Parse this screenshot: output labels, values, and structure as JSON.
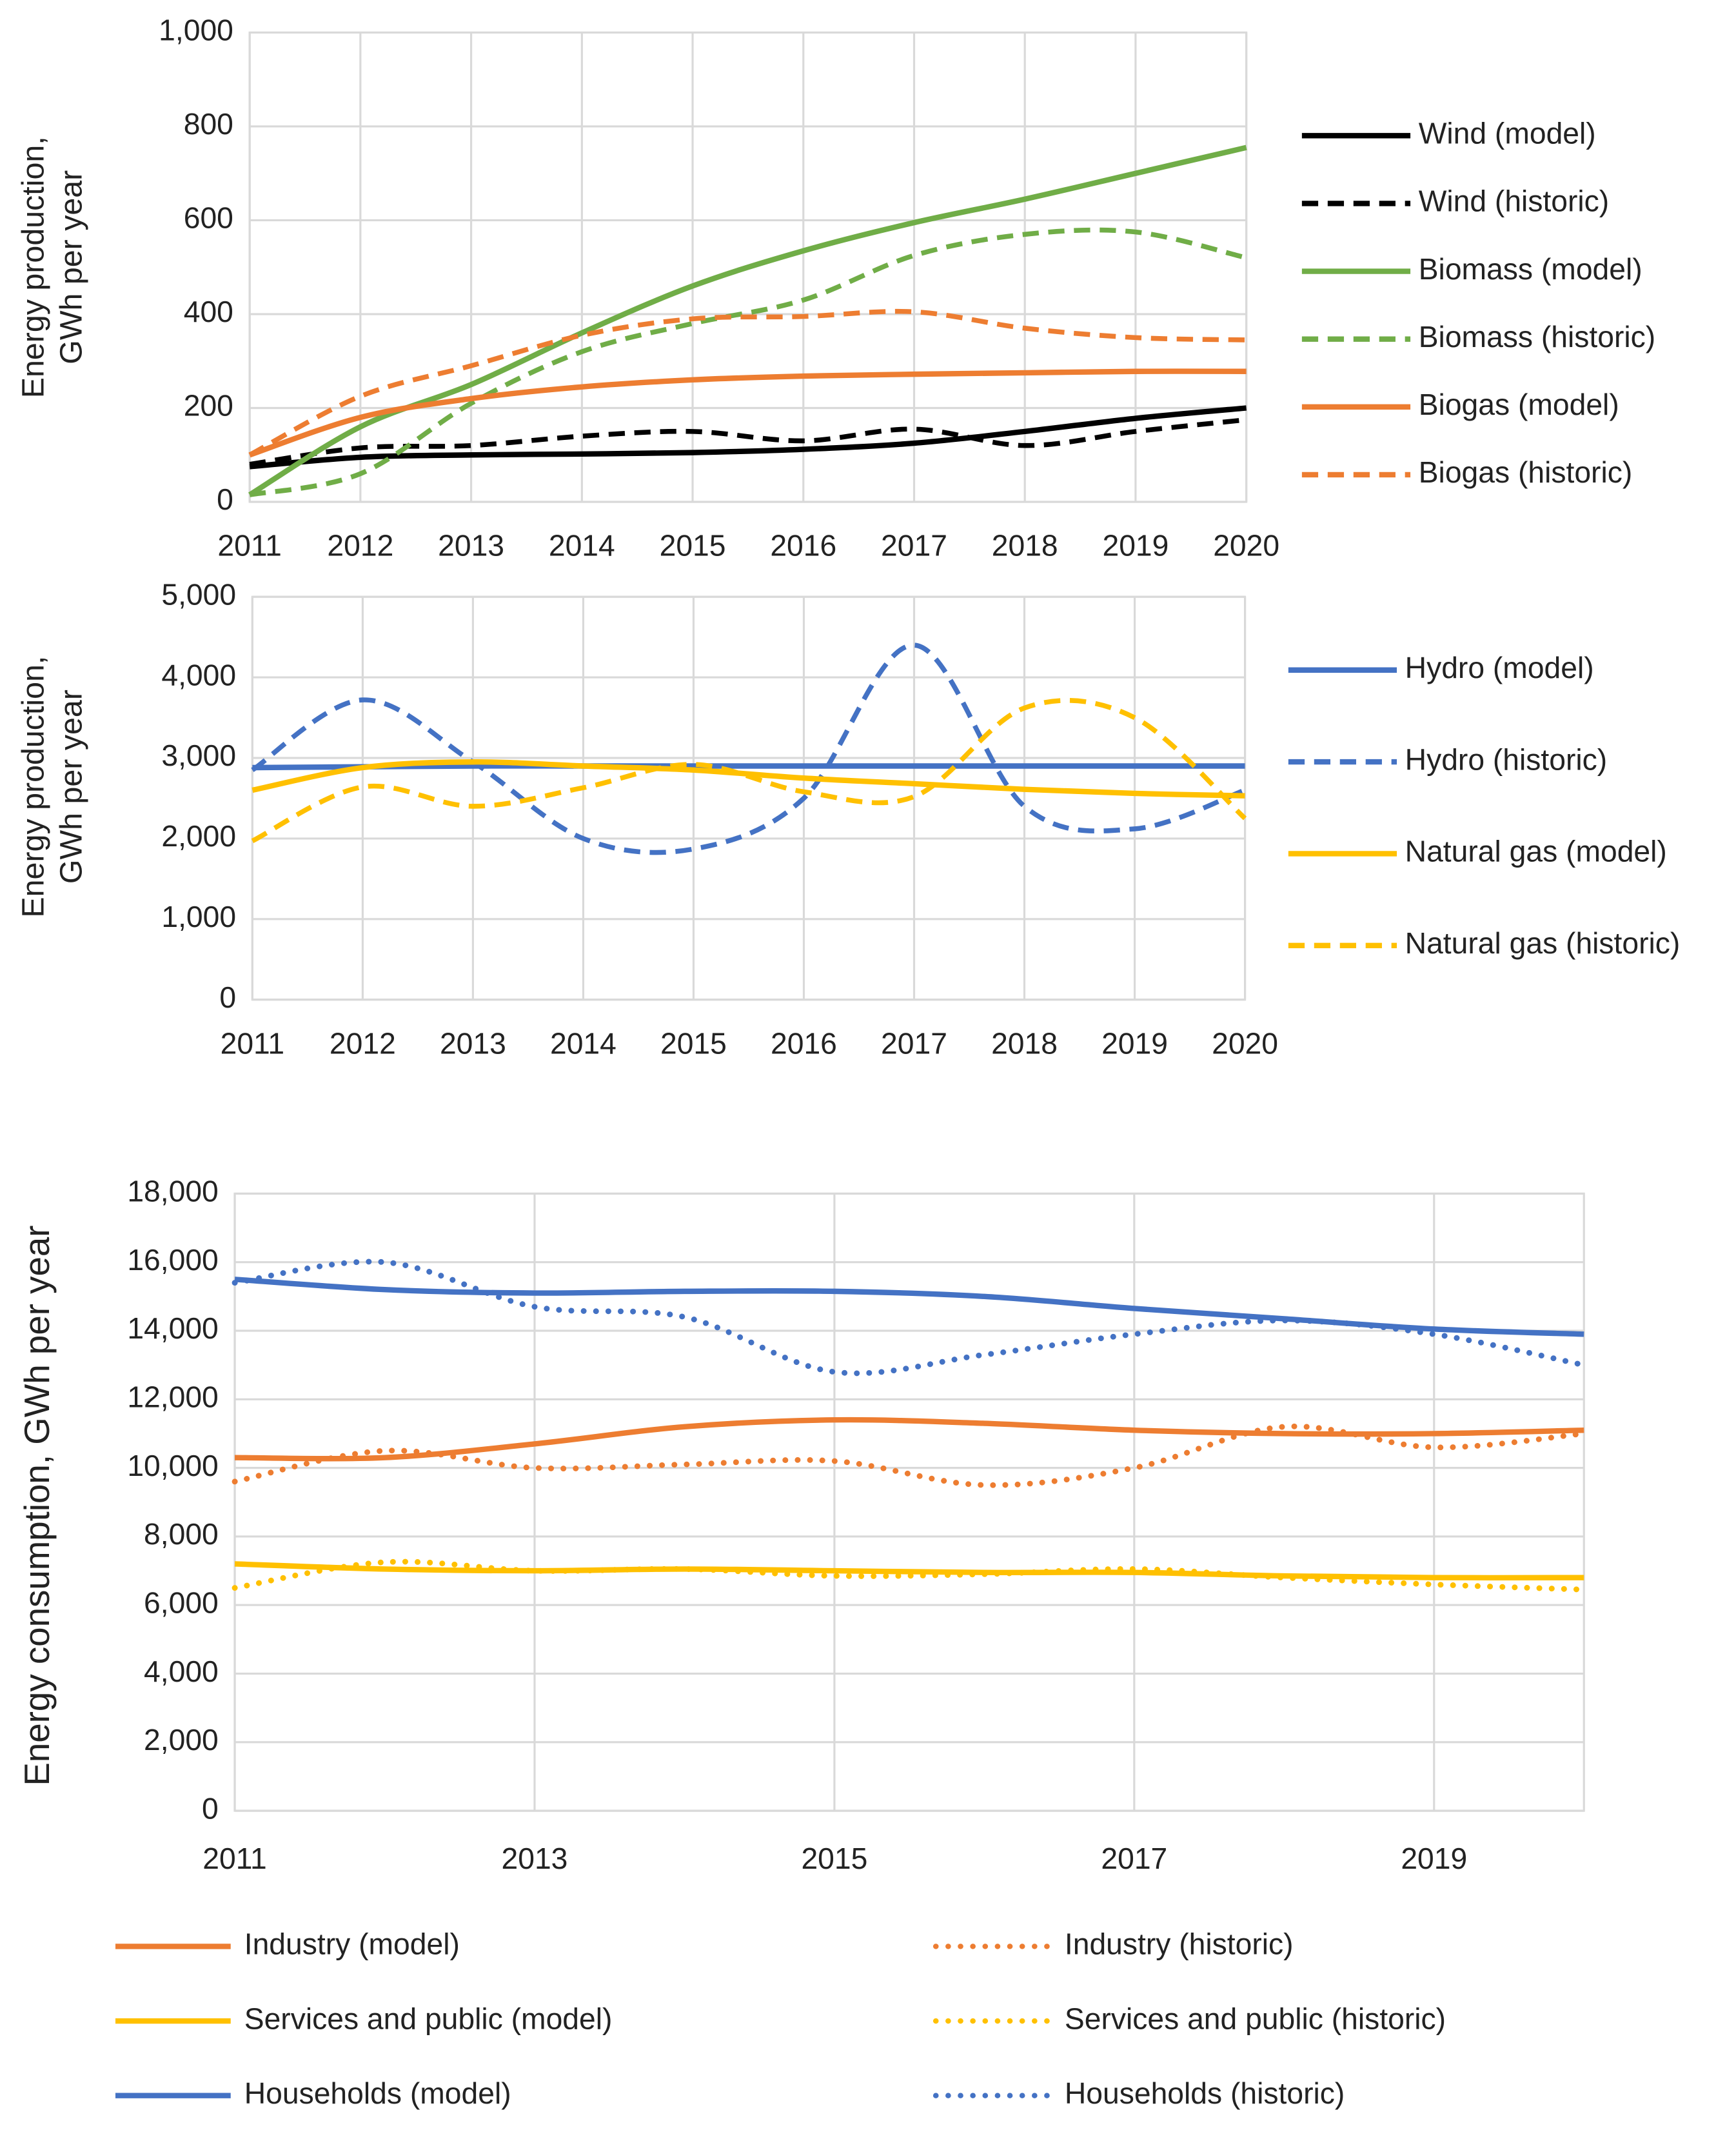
{
  "chart_data": [
    {
      "type": "line",
      "y_label": "Energy production, GWh per year",
      "x": [
        2011,
        2012,
        2013,
        2014,
        2015,
        2016,
        2017,
        2018,
        2019,
        2020
      ],
      "xlim": [
        2011,
        2020
      ],
      "xticks": [
        2011,
        2012,
        2013,
        2014,
        2015,
        2016,
        2017,
        2018,
        2019,
        2020
      ],
      "ylim": [
        0,
        1000
      ],
      "yticks": [
        0,
        200,
        400,
        600,
        800,
        {
          "value": 1000,
          "label": "1,000"
        }
      ],
      "grid": true,
      "legend": "right",
      "series": [
        {
          "name": "Wind (model)",
          "color": "#000000",
          "style": "solid",
          "values": [
            75,
            95,
            100,
            102,
            105,
            112,
            125,
            150,
            178,
            200
          ]
        },
        {
          "name": "Wind (historic)",
          "color": "#000000",
          "style": "dashed",
          "values": [
            80,
            115,
            120,
            140,
            150,
            130,
            155,
            120,
            150,
            175
          ]
        },
        {
          "name": "Biomass (model)",
          "color": "#70ad47",
          "style": "solid",
          "values": [
            15,
            160,
            250,
            360,
            460,
            535,
            595,
            645,
            700,
            755
          ]
        },
        {
          "name": "Biomass (historic)",
          "color": "#70ad47",
          "style": "dashed",
          "values": [
            15,
            60,
            210,
            320,
            380,
            430,
            525,
            570,
            575,
            520
          ]
        },
        {
          "name": "Biogas (model)",
          "color": "#ed7d31",
          "style": "solid",
          "values": [
            100,
            180,
            220,
            245,
            260,
            268,
            272,
            275,
            278,
            278
          ]
        },
        {
          "name": "Biogas (historic)",
          "color": "#ed7d31",
          "style": "dashed",
          "values": [
            100,
            225,
            290,
            355,
            390,
            395,
            405,
            370,
            350,
            345
          ]
        }
      ]
    },
    {
      "type": "line",
      "y_label": "Energy production, GWh per year",
      "x": [
        2011,
        2012,
        2013,
        2014,
        2015,
        2016,
        2017,
        2018,
        2019,
        2020
      ],
      "xlim": [
        2011,
        2020
      ],
      "xticks": [
        2011,
        2012,
        2013,
        2014,
        2015,
        2016,
        2017,
        2018,
        2019,
        2020
      ],
      "ylim": [
        0,
        5000
      ],
      "yticks": [
        0,
        {
          "value": 1000,
          "label": "1,000"
        },
        {
          "value": 2000,
          "label": "2,000"
        },
        {
          "value": 3000,
          "label": "3,000"
        },
        {
          "value": 4000,
          "label": "4,000"
        },
        {
          "value": 5000,
          "label": "5,000"
        }
      ],
      "grid": true,
      "legend": "right",
      "series": [
        {
          "name": "Hydro (model)",
          "color": "#4472c4",
          "style": "solid",
          "values": [
            2880,
            2890,
            2900,
            2900,
            2900,
            2900,
            2900,
            2900,
            2900,
            2900
          ]
        },
        {
          "name": "Hydro (historic)",
          "color": "#4472c4",
          "style": "dashed",
          "values": [
            2850,
            3720,
            2950,
            2000,
            1870,
            2500,
            4400,
            2400,
            2120,
            2600
          ]
        },
        {
          "name": "Natural gas (model)",
          "color": "#ffc000",
          "style": "solid",
          "values": [
            2600,
            2880,
            2950,
            2900,
            2850,
            2750,
            2680,
            2610,
            2560,
            2530
          ]
        },
        {
          "name": "Natural gas (historic)",
          "color": "#ffc000",
          "style": "dashed",
          "values": [
            1970,
            2640,
            2400,
            2630,
            2920,
            2580,
            2520,
            3620,
            3500,
            2250
          ]
        }
      ]
    },
    {
      "type": "line",
      "y_label": "Energy consumption, GWh per year",
      "x": [
        2011,
        2012,
        2013,
        2014,
        2015,
        2016,
        2017,
        2018,
        2019,
        2020
      ],
      "xlim": [
        2011,
        2020
      ],
      "xticks": [
        2011,
        2013,
        2015,
        2017,
        2019
      ],
      "ylim": [
        0,
        18000
      ],
      "yticks": [
        0,
        {
          "value": 2000,
          "label": "2,000"
        },
        {
          "value": 4000,
          "label": "4,000"
        },
        {
          "value": 6000,
          "label": "6,000"
        },
        {
          "value": 8000,
          "label": "8,000"
        },
        {
          "value": 10000,
          "label": "10,000"
        },
        {
          "value": 12000,
          "label": "12,000"
        },
        {
          "value": 14000,
          "label": "14,000"
        },
        {
          "value": 16000,
          "label": "16,000"
        },
        {
          "value": 18000,
          "label": "18,000"
        }
      ],
      "grid": true,
      "legend": "bottom",
      "series": [
        {
          "name": "Industry (model)",
          "color": "#ed7d31",
          "style": "solid",
          "values": [
            10300,
            10300,
            10700,
            11200,
            11400,
            11300,
            11100,
            11000,
            11000,
            11100
          ]
        },
        {
          "name": "Industry (historic)",
          "color": "#ed7d31",
          "style": "dotted",
          "values": [
            9600,
            10500,
            10000,
            10100,
            10200,
            9500,
            10000,
            11200,
            10600,
            11000
          ]
        },
        {
          "name": "Services and public (model)",
          "color": "#ffc000",
          "style": "solid",
          "values": [
            7200,
            7050,
            7000,
            7050,
            7000,
            6950,
            6950,
            6850,
            6800,
            6800
          ]
        },
        {
          "name": "Services and public (historic)",
          "color": "#ffc000",
          "style": "dotted",
          "values": [
            6500,
            7250,
            7000,
            7050,
            6850,
            6900,
            7050,
            6800,
            6600,
            6450
          ]
        },
        {
          "name": "Households (model)",
          "color": "#4472c4",
          "style": "solid",
          "values": [
            15500,
            15200,
            15100,
            15150,
            15150,
            15000,
            14650,
            14350,
            14050,
            13900
          ]
        },
        {
          "name": "Households (historic)",
          "color": "#4472c4",
          "style": "dotted",
          "values": [
            15400,
            16000,
            14700,
            14400,
            12800,
            13300,
            13900,
            14300,
            13900,
            13000
          ]
        }
      ]
    }
  ]
}
